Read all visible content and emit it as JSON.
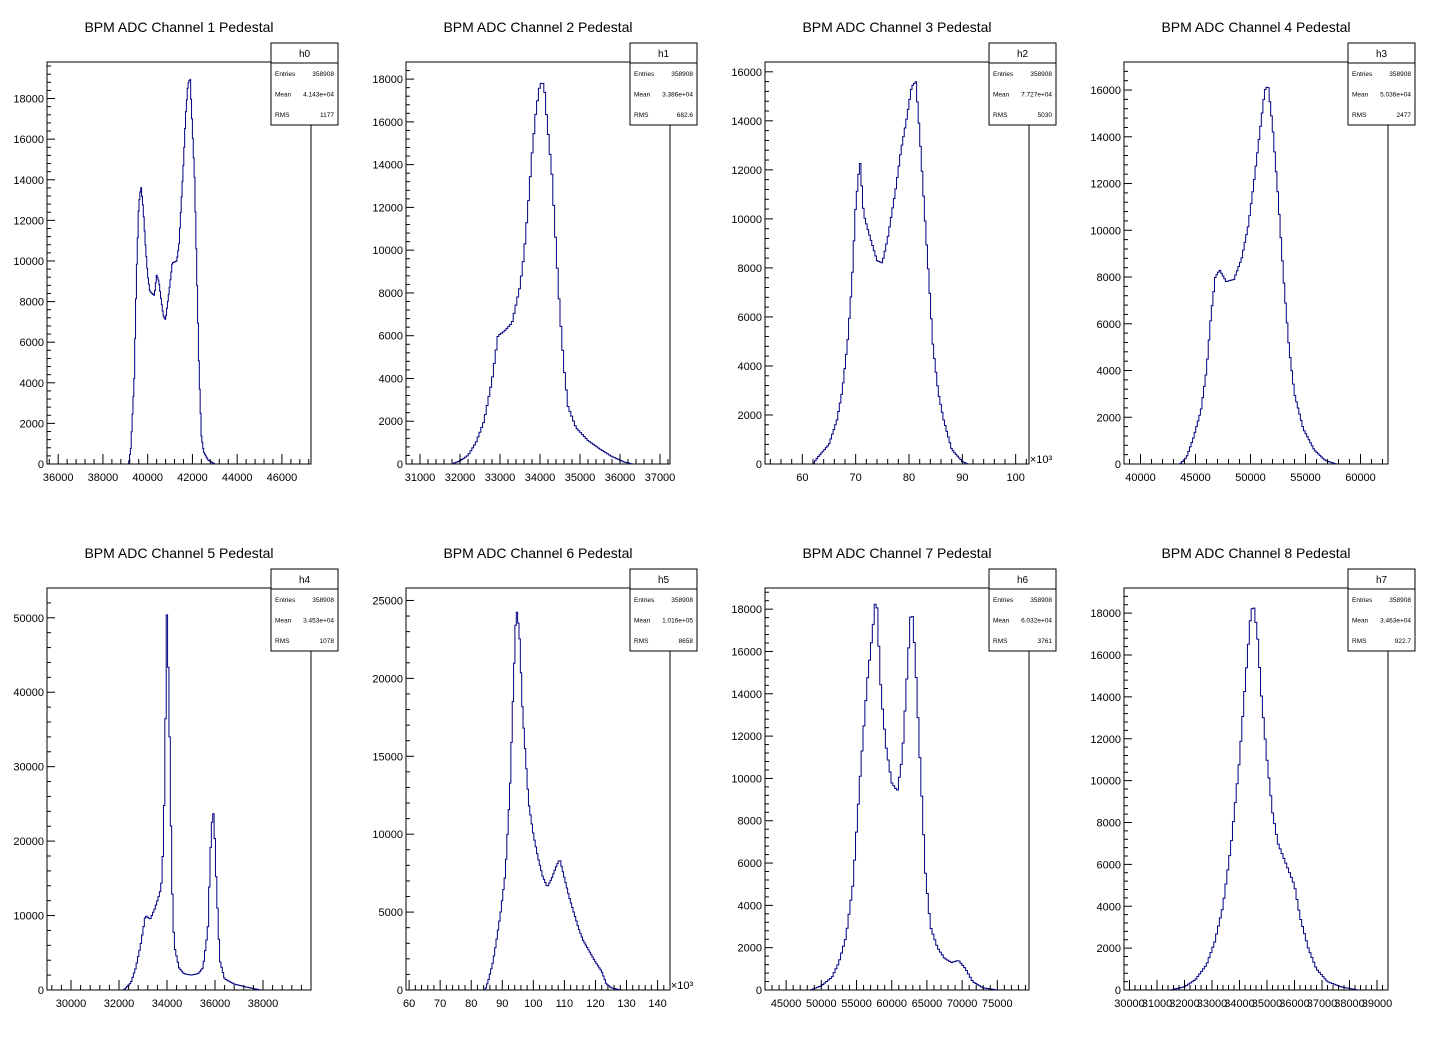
{
  "chart_data": [
    {
      "type": "histogram",
      "title": "BPM ADC Channel 1 Pedestal",
      "xlim": [
        35500,
        47300
      ],
      "ylim": [
        0,
        19800
      ],
      "xticks": [
        36000,
        38000,
        40000,
        42000,
        44000,
        46000
      ],
      "yticks": [
        0,
        2000,
        4000,
        6000,
        8000,
        10000,
        12000,
        14000,
        16000,
        18000
      ],
      "x_multiplier": "",
      "stats": {
        "name": "h0",
        "Entries": "358908",
        "Mean": "4.143e+04",
        "RMS": "1177"
      },
      "profile": [
        [
          39150,
          0
        ],
        [
          39250,
          800
        ],
        [
          39400,
          4200
        ],
        [
          39500,
          9300
        ],
        [
          39600,
          12700
        ],
        [
          39700,
          13700
        ],
        [
          39800,
          12600
        ],
        [
          39900,
          10800
        ],
        [
          40000,
          9300
        ],
        [
          40100,
          8500
        ],
        [
          40300,
          8300
        ],
        [
          40400,
          9300
        ],
        [
          40500,
          9000
        ],
        [
          40600,
          8100
        ],
        [
          40700,
          7300
        ],
        [
          40800,
          7100
        ],
        [
          40900,
          8000
        ],
        [
          41000,
          8900
        ],
        [
          41100,
          9900
        ],
        [
          41300,
          10000
        ],
        [
          41400,
          10800
        ],
        [
          41500,
          12800
        ],
        [
          41600,
          14800
        ],
        [
          41700,
          17200
        ],
        [
          41800,
          18700
        ],
        [
          41900,
          19000
        ],
        [
          42000,
          16500
        ],
        [
          42100,
          14000
        ],
        [
          42200,
          9300
        ],
        [
          42300,
          4500
        ],
        [
          42400,
          1400
        ],
        [
          42500,
          600
        ],
        [
          42700,
          200
        ],
        [
          43000,
          0
        ]
      ]
    },
    {
      "type": "histogram",
      "title": "BPM ADC Channel 2 Pedestal",
      "xlim": [
        30650,
        37250
      ],
      "ylim": [
        0,
        18800
      ],
      "xticks": [
        31000,
        32000,
        33000,
        34000,
        35000,
        36000,
        37000
      ],
      "yticks": [
        0,
        2000,
        4000,
        6000,
        8000,
        10000,
        12000,
        14000,
        16000,
        18000
      ],
      "x_multiplier": "",
      "stats": {
        "name": "h1",
        "Entries": "358908",
        "Mean": "3.386e+04",
        "RMS": "682.6"
      },
      "profile": [
        [
          31800,
          0
        ],
        [
          32000,
          150
        ],
        [
          32200,
          400
        ],
        [
          32400,
          1000
        ],
        [
          32600,
          2000
        ],
        [
          32800,
          3900
        ],
        [
          32950,
          6000
        ],
        [
          33100,
          6200
        ],
        [
          33300,
          6600
        ],
        [
          33500,
          8300
        ],
        [
          33600,
          9800
        ],
        [
          33700,
          12000
        ],
        [
          33800,
          14500
        ],
        [
          33900,
          16500
        ],
        [
          34000,
          17800
        ],
        [
          34100,
          17800
        ],
        [
          34150,
          16600
        ],
        [
          34300,
          13500
        ],
        [
          34400,
          10200
        ],
        [
          34500,
          7000
        ],
        [
          34600,
          4500
        ],
        [
          34700,
          2700
        ],
        [
          34900,
          1700
        ],
        [
          35200,
          1100
        ],
        [
          35500,
          700
        ],
        [
          35800,
          350
        ],
        [
          36100,
          100
        ],
        [
          36300,
          0
        ]
      ]
    },
    {
      "type": "histogram",
      "title": "BPM ADC Channel 3 Pedestal",
      "xlim": [
        53,
        102.5
      ],
      "ylim": [
        0,
        16400
      ],
      "xticks": [
        60,
        70,
        80,
        90,
        100
      ],
      "yticks": [
        0,
        2000,
        4000,
        6000,
        8000,
        10000,
        12000,
        14000,
        16000
      ],
      "x_multiplier": "×10³",
      "stats": {
        "name": "h2",
        "Entries": "358908",
        "Mean": "7.727e+04",
        "RMS": "5030"
      },
      "profile": [
        [
          62,
          0
        ],
        [
          63,
          300
        ],
        [
          65,
          800
        ],
        [
          66.5,
          1800
        ],
        [
          67.5,
          3000
        ],
        [
          68.5,
          5000
        ],
        [
          69.3,
          7400
        ],
        [
          70,
          10500
        ],
        [
          70.8,
          12400
        ],
        [
          71.5,
          10200
        ],
        [
          72.5,
          9400
        ],
        [
          74,
          8300
        ],
        [
          75,
          8200
        ],
        [
          76,
          9200
        ],
        [
          77.5,
          11200
        ],
        [
          78.5,
          12800
        ],
        [
          79.5,
          14000
        ],
        [
          80.5,
          15400
        ],
        [
          81.3,
          15600
        ],
        [
          82,
          13500
        ],
        [
          83,
          10000
        ],
        [
          83.8,
          7300
        ],
        [
          84.5,
          4800
        ],
        [
          85.5,
          2900
        ],
        [
          86.5,
          1800
        ],
        [
          88,
          600
        ],
        [
          90,
          100
        ],
        [
          91,
          0
        ]
      ]
    },
    {
      "type": "histogram",
      "title": "BPM ADC Channel 4 Pedestal",
      "xlim": [
        38500,
        62500
      ],
      "ylim": [
        0,
        17200
      ],
      "xticks": [
        40000,
        45000,
        50000,
        55000,
        60000
      ],
      "yticks": [
        0,
        2000,
        4000,
        6000,
        8000,
        10000,
        12000,
        14000,
        16000
      ],
      "x_multiplier": "",
      "stats": {
        "name": "h3",
        "Entries": "358908",
        "Mean": "5.036e+04",
        "RMS": "2477"
      },
      "profile": [
        [
          43600,
          0
        ],
        [
          44200,
          300
        ],
        [
          44800,
          1100
        ],
        [
          45500,
          2300
        ],
        [
          46000,
          4000
        ],
        [
          46400,
          6300
        ],
        [
          46800,
          8000
        ],
        [
          47200,
          8300
        ],
        [
          47800,
          7800
        ],
        [
          48500,
          7900
        ],
        [
          49200,
          8800
        ],
        [
          49800,
          10200
        ],
        [
          50300,
          12000
        ],
        [
          50800,
          14000
        ],
        [
          51300,
          16000
        ],
        [
          51600,
          16200
        ],
        [
          52000,
          14500
        ],
        [
          52500,
          11500
        ],
        [
          53000,
          8000
        ],
        [
          53500,
          5000
        ],
        [
          54000,
          3000
        ],
        [
          54800,
          1500
        ],
        [
          55800,
          600
        ],
        [
          56800,
          150
        ],
        [
          57800,
          0
        ]
      ]
    },
    {
      "type": "histogram",
      "title": "BPM ADC Channel 5 Pedestal",
      "xlim": [
        29000,
        40000
      ],
      "ylim": [
        0,
        54000
      ],
      "xticks": [
        30000,
        32000,
        34000,
        36000,
        38000
      ],
      "yticks": [
        0,
        10000,
        20000,
        30000,
        40000,
        50000
      ],
      "x_multiplier": "",
      "stats": {
        "name": "h4",
        "Entries": "358908",
        "Mean": "3.453e+04",
        "RMS": "1078"
      },
      "profile": [
        [
          32200,
          0
        ],
        [
          32500,
          1000
        ],
        [
          32700,
          3000
        ],
        [
          32900,
          6000
        ],
        [
          33000,
          8000
        ],
        [
          33100,
          10000
        ],
        [
          33300,
          9500
        ],
        [
          33500,
          11000
        ],
        [
          33700,
          13000
        ],
        [
          33800,
          15000
        ],
        [
          33900,
          27000
        ],
        [
          34000,
          51500
        ],
        [
          34100,
          36000
        ],
        [
          34200,
          15000
        ],
        [
          34300,
          6000
        ],
        [
          34500,
          3000
        ],
        [
          34700,
          2200
        ],
        [
          35000,
          2000
        ],
        [
          35300,
          2200
        ],
        [
          35500,
          3000
        ],
        [
          35700,
          8000
        ],
        [
          35850,
          22000
        ],
        [
          35950,
          24000
        ],
        [
          36050,
          15000
        ],
        [
          36200,
          4000
        ],
        [
          36400,
          1500
        ],
        [
          36800,
          800
        ],
        [
          37300,
          400
        ],
        [
          37900,
          0
        ]
      ]
    },
    {
      "type": "histogram",
      "title": "BPM ADC Channel 6 Pedestal",
      "xlim": [
        59,
        144
      ],
      "ylim": [
        0,
        25800
      ],
      "xticks": [
        60,
        70,
        80,
        90,
        100,
        110,
        120,
        130,
        140
      ],
      "yticks": [
        0,
        5000,
        10000,
        15000,
        20000,
        25000
      ],
      "x_multiplier": "×10³",
      "stats": {
        "name": "h5",
        "Entries": "358908",
        "Mean": "1.016e+05",
        "RMS": "8658"
      },
      "profile": [
        [
          84.5,
          0
        ],
        [
          85.5,
          600
        ],
        [
          87,
          1800
        ],
        [
          88,
          3000
        ],
        [
          89.5,
          5000
        ],
        [
          91,
          7500
        ],
        [
          92.5,
          13000
        ],
        [
          93.5,
          19000
        ],
        [
          94.5,
          24600
        ],
        [
          95.5,
          23000
        ],
        [
          96.5,
          18000
        ],
        [
          97.5,
          15000
        ],
        [
          98.5,
          12000
        ],
        [
          100,
          10000
        ],
        [
          101.5,
          8500
        ],
        [
          103,
          7300
        ],
        [
          104.5,
          6600
        ],
        [
          106,
          7200
        ],
        [
          107.5,
          8000
        ],
        [
          108.5,
          8400
        ],
        [
          110,
          7200
        ],
        [
          111.5,
          6000
        ],
        [
          113,
          5000
        ],
        [
          114.5,
          4000
        ],
        [
          116,
          3200
        ],
        [
          118,
          2500
        ],
        [
          120,
          1800
        ],
        [
          122,
          1200
        ],
        [
          123.5,
          400
        ],
        [
          125,
          150
        ],
        [
          128,
          0
        ]
      ]
    },
    {
      "type": "histogram",
      "title": "BPM ADC Channel 7 Pedestal",
      "xlim": [
        42000,
        79500
      ],
      "ylim": [
        0,
        19000
      ],
      "xticks": [
        45000,
        50000,
        55000,
        60000,
        65000,
        70000,
        75000
      ],
      "yticks": [
        0,
        2000,
        4000,
        6000,
        8000,
        10000,
        12000,
        14000,
        16000,
        18000
      ],
      "x_multiplier": "",
      "stats": {
        "name": "h6",
        "Entries": "358908",
        "Mean": "6.032e+04",
        "RMS": "3761"
      },
      "profile": [
        [
          48500,
          0
        ],
        [
          50000,
          200
        ],
        [
          51500,
          600
        ],
        [
          52500,
          1300
        ],
        [
          53500,
          2500
        ],
        [
          54500,
          5000
        ],
        [
          55500,
          10000
        ],
        [
          56500,
          14500
        ],
        [
          57300,
          17000
        ],
        [
          57800,
          18800
        ],
        [
          58500,
          14000
        ],
        [
          59200,
          11500
        ],
        [
          60000,
          9800
        ],
        [
          60800,
          9400
        ],
        [
          61500,
          11000
        ],
        [
          62200,
          15000
        ],
        [
          62800,
          18300
        ],
        [
          63300,
          16000
        ],
        [
          64000,
          11000
        ],
        [
          64800,
          5500
        ],
        [
          65500,
          3000
        ],
        [
          66500,
          2000
        ],
        [
          67500,
          1500
        ],
        [
          68500,
          1300
        ],
        [
          69500,
          1400
        ],
        [
          70500,
          1000
        ],
        [
          71500,
          400
        ],
        [
          73000,
          100
        ],
        [
          75000,
          0
        ]
      ]
    },
    {
      "type": "histogram",
      "title": "BPM ADC Channel 8 Pedestal",
      "xlim": [
        29800,
        39400
      ],
      "ylim": [
        0,
        19200
      ],
      "xticks": [
        30000,
        31000,
        32000,
        33000,
        34000,
        35000,
        36000,
        37000,
        38000,
        39000
      ],
      "yticks": [
        0,
        2000,
        4000,
        6000,
        8000,
        10000,
        12000,
        14000,
        16000,
        18000
      ],
      "x_multiplier": "",
      "stats": {
        "name": "h7",
        "Entries": "358908",
        "Mean": "3.463e+04",
        "RMS": "922.7"
      },
      "profile": [
        [
          31500,
          0
        ],
        [
          32000,
          150
        ],
        [
          32400,
          500
        ],
        [
          32800,
          1200
        ],
        [
          33100,
          2300
        ],
        [
          33400,
          4000
        ],
        [
          33700,
          7000
        ],
        [
          34000,
          11000
        ],
        [
          34200,
          14500
        ],
        [
          34400,
          17800
        ],
        [
          34500,
          18500
        ],
        [
          34650,
          17000
        ],
        [
          34800,
          14000
        ],
        [
          35000,
          11000
        ],
        [
          35200,
          8500
        ],
        [
          35400,
          7000
        ],
        [
          35700,
          6000
        ],
        [
          36000,
          5000
        ],
        [
          36200,
          3500
        ],
        [
          36500,
          2000
        ],
        [
          36800,
          1000
        ],
        [
          37200,
          400
        ],
        [
          37700,
          150
        ],
        [
          38300,
          0
        ]
      ]
    }
  ]
}
